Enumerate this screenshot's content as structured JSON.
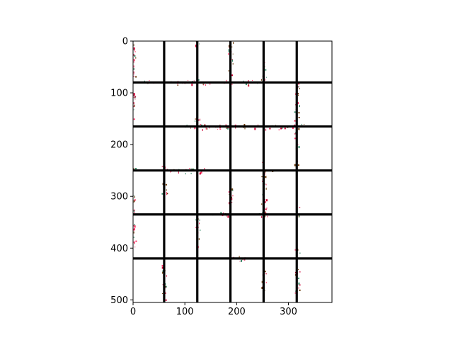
{
  "chart_data": {
    "type": "heatmap",
    "title": "",
    "xlabel": "",
    "ylabel": "",
    "xlim": [
      0,
      384
    ],
    "ylim": [
      505,
      0
    ],
    "y_inverted": true,
    "x_ticks": [
      0,
      100,
      200,
      300
    ],
    "x_tick_labels": [
      "0",
      "100",
      "200",
      "300"
    ],
    "y_ticks": [
      0,
      100,
      200,
      300,
      400,
      500
    ],
    "y_tick_labels": [
      "0",
      "100",
      "200",
      "300",
      "400",
      "500"
    ],
    "grid_lines_vertical_x": [
      60,
      124,
      188,
      252,
      316
    ],
    "grid_lines_horizontal_y": [
      80,
      165,
      250,
      335,
      420
    ],
    "grid_color": "#000000",
    "speckle_colors": [
      "#cc0033",
      "#ff3366",
      "#663300",
      "#338866"
    ],
    "speckle_clusters": [
      {
        "axis": "y",
        "at": 0,
        "from": 0,
        "to": 70
      },
      {
        "axis": "y",
        "at": 0,
        "from": 100,
        "to": 150
      },
      {
        "axis": "y",
        "at": 0,
        "from": 240,
        "to": 250
      },
      {
        "axis": "y",
        "at": 0,
        "from": 290,
        "to": 330
      },
      {
        "axis": "y",
        "at": 0,
        "from": 350,
        "to": 400
      },
      {
        "axis": "x",
        "at": 80,
        "from": 20,
        "to": 40
      },
      {
        "axis": "x",
        "at": 80,
        "from": 70,
        "to": 120
      },
      {
        "axis": "x",
        "at": 80,
        "from": 130,
        "to": 150
      },
      {
        "axis": "x",
        "at": 80,
        "from": 175,
        "to": 190
      },
      {
        "axis": "x",
        "at": 80,
        "from": 210,
        "to": 240
      },
      {
        "axis": "x",
        "at": 165,
        "from": 100,
        "to": 330
      },
      {
        "axis": "x",
        "at": 250,
        "from": 60,
        "to": 140
      },
      {
        "axis": "x",
        "at": 250,
        "from": 250,
        "to": 270
      },
      {
        "axis": "x",
        "at": 335,
        "from": 150,
        "to": 190
      },
      {
        "axis": "x",
        "at": 335,
        "from": 240,
        "to": 260
      },
      {
        "axis": "x",
        "at": 420,
        "from": 190,
        "to": 220
      },
      {
        "axis": "y",
        "at": 60,
        "from": 240,
        "to": 250
      },
      {
        "axis": "y",
        "at": 60,
        "from": 270,
        "to": 300
      },
      {
        "axis": "y",
        "at": 60,
        "from": 430,
        "to": 500
      },
      {
        "axis": "y",
        "at": 124,
        "from": 0,
        "to": 10
      },
      {
        "axis": "y",
        "at": 124,
        "from": 60,
        "to": 80
      },
      {
        "axis": "y",
        "at": 124,
        "from": 140,
        "to": 170
      },
      {
        "axis": "y",
        "at": 124,
        "from": 335,
        "to": 400
      },
      {
        "axis": "y",
        "at": 188,
        "from": 0,
        "to": 70
      },
      {
        "axis": "y",
        "at": 188,
        "from": 280,
        "to": 320
      },
      {
        "axis": "y",
        "at": 252,
        "from": 40,
        "to": 80
      },
      {
        "axis": "y",
        "at": 252,
        "from": 230,
        "to": 330
      },
      {
        "axis": "y",
        "at": 252,
        "from": 440,
        "to": 490
      },
      {
        "axis": "y",
        "at": 316,
        "from": 80,
        "to": 240
      },
      {
        "axis": "y",
        "at": 316,
        "from": 320,
        "to": 340
      },
      {
        "axis": "y",
        "at": 316,
        "from": 400,
        "to": 420
      },
      {
        "axis": "y",
        "at": 316,
        "from": 440,
        "to": 490
      }
    ]
  }
}
